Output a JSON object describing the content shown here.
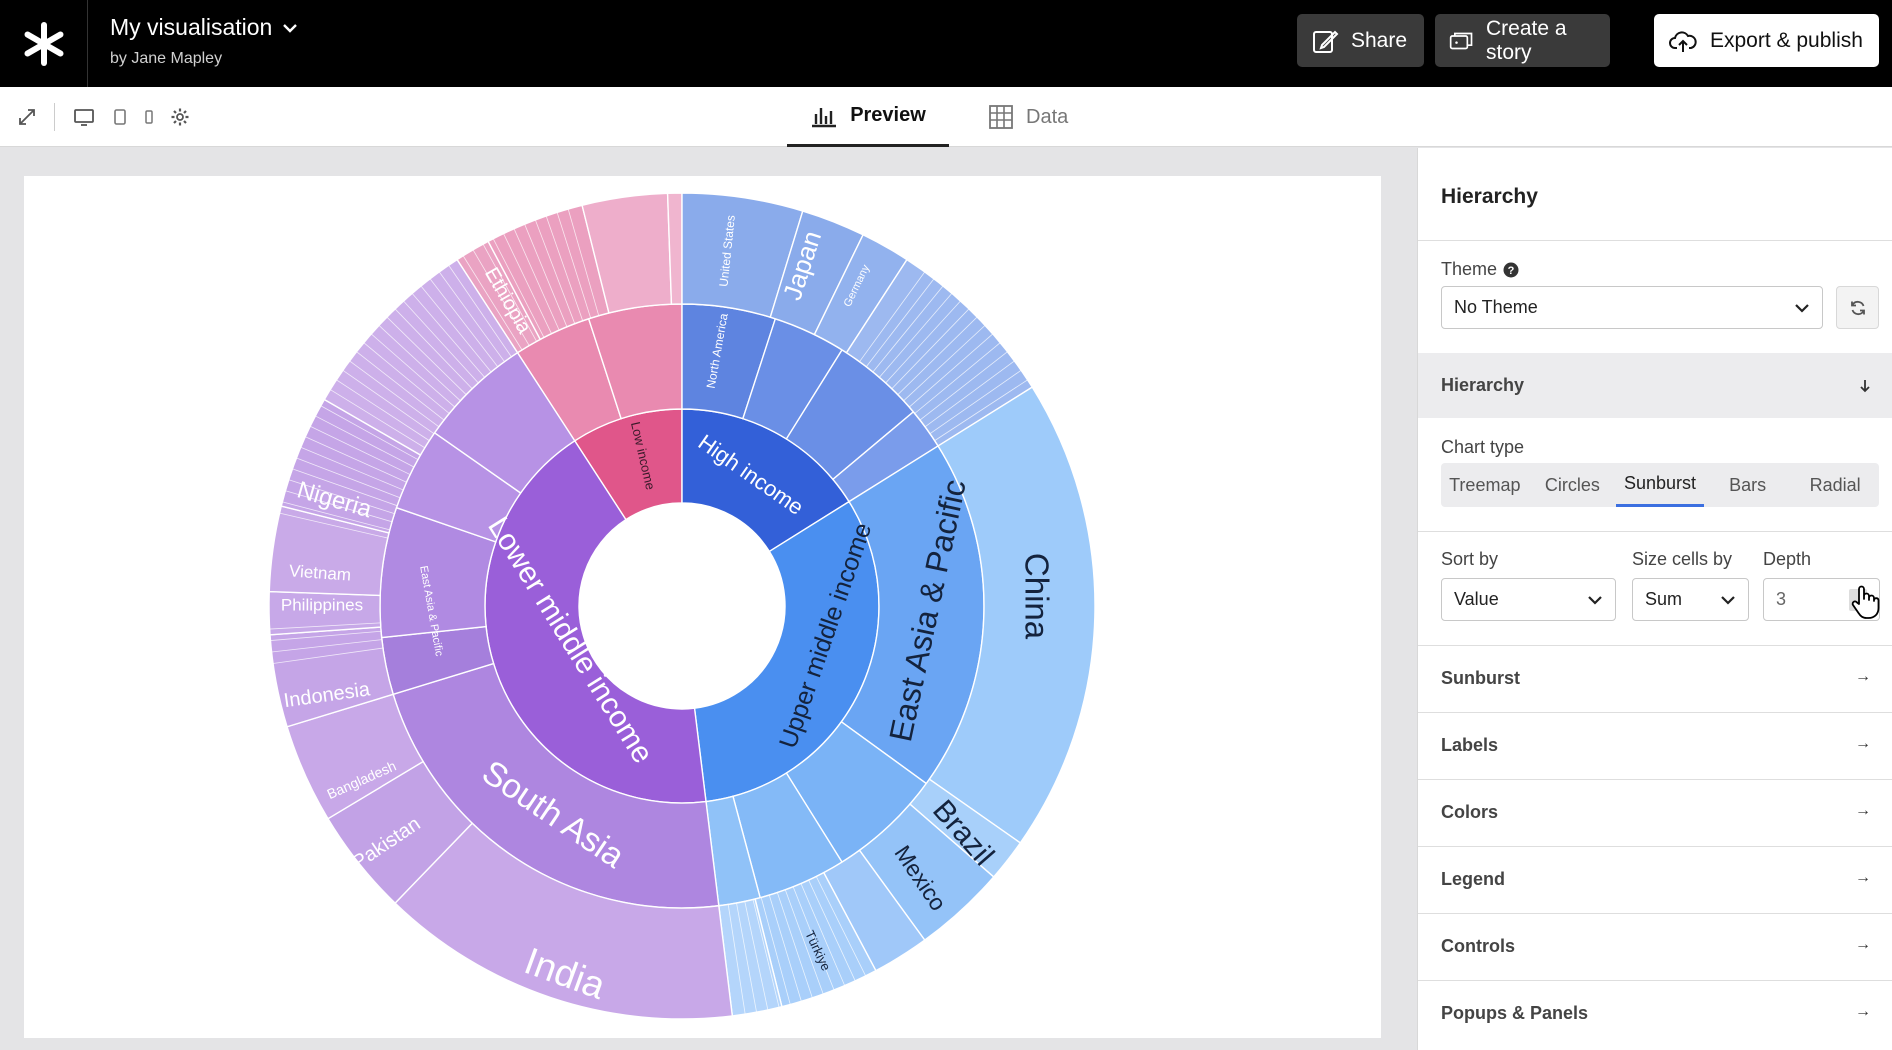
{
  "header": {
    "title": "My visualisation",
    "author": "by Jane Mapley",
    "share_label": "Share",
    "story_label": "Create a story",
    "export_label": "Export & publish"
  },
  "toolbar": {
    "preview_label": "Preview",
    "data_label": "Data"
  },
  "chart": {
    "rings": [
      {
        "level": 1,
        "segments": [
          {
            "name": "Low income",
            "color": "#e0568a"
          },
          {
            "name": "High income",
            "color": "#3360d8"
          },
          {
            "name": "Upper middle income",
            "color": "#4a8ff0"
          },
          {
            "name": "Lower middle income",
            "color": "#9a5fd9"
          }
        ]
      },
      {
        "level": 2,
        "segments": [
          {
            "name": "North America",
            "color": "#5e84e0"
          },
          {
            "name": "East Asia & Pacific",
            "color": "#6aa5f3"
          },
          {
            "name": "South Asia",
            "color": "#ae86e0"
          },
          {
            "name": "East Asia & Pacific",
            "color": "#ae86e0"
          }
        ]
      },
      {
        "level": 3,
        "segments": [
          {
            "name": "Ethiopia"
          },
          {
            "name": "United States"
          },
          {
            "name": "Japan"
          },
          {
            "name": "Germany"
          },
          {
            "name": "China"
          },
          {
            "name": "Brazil"
          },
          {
            "name": "Mexico"
          },
          {
            "name": "Türkiye"
          },
          {
            "name": "India"
          },
          {
            "name": "Pakistan"
          },
          {
            "name": "Bangladesh"
          },
          {
            "name": "Indonesia"
          },
          {
            "name": "Philippines"
          },
          {
            "name": "Vietnam"
          },
          {
            "name": "Nigeria"
          }
        ]
      }
    ]
  },
  "panel": {
    "title": "Hierarchy",
    "theme_label": "Theme",
    "theme_value": "No Theme",
    "section_hierarchy": "Hierarchy",
    "chart_type_label": "Chart type",
    "chart_types": [
      "Treemap",
      "Circles",
      "Sunburst",
      "Bars",
      "Radial"
    ],
    "active_chart_type": "Sunburst",
    "sort_by_label": "Sort by",
    "sort_by_value": "Value",
    "size_by_label": "Size cells by",
    "size_by_value": "Sum",
    "depth_label": "Depth",
    "depth_value": "3",
    "sections": [
      "Sunburst",
      "Labels",
      "Colors",
      "Legend",
      "Controls",
      "Popups & Panels"
    ]
  }
}
